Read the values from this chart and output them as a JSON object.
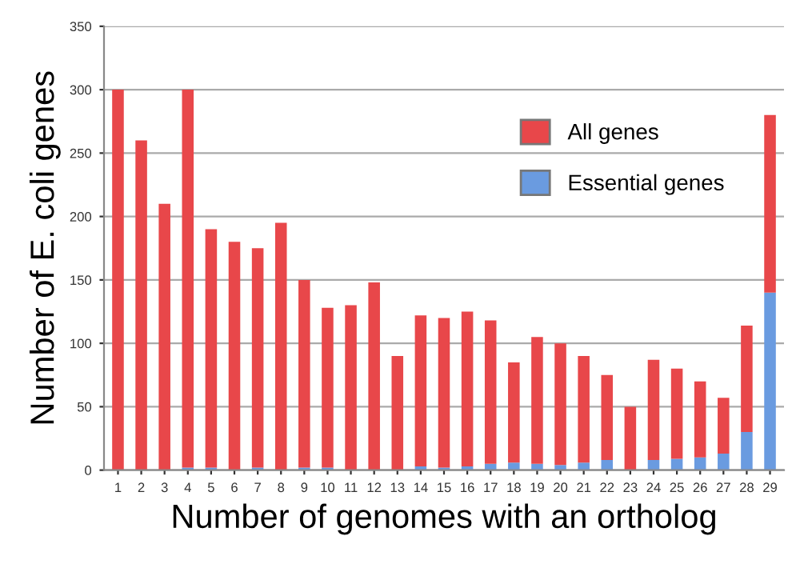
{
  "chart_data": {
    "type": "bar",
    "stacked": true,
    "xlabel": "Number of genomes with an ortholog",
    "ylabel": "Number of E. coli genes",
    "categories": [
      "1",
      "2",
      "3",
      "4",
      "5",
      "6",
      "7",
      "8",
      "9",
      "10",
      "11",
      "12",
      "13",
      "14",
      "15",
      "16",
      "17",
      "18",
      "19",
      "20",
      "21",
      "22",
      "23",
      "24",
      "25",
      "26",
      "27",
      "28",
      "29"
    ],
    "series": [
      {
        "name": "Essential genes",
        "color": "#6a9be0",
        "values": [
          0,
          0,
          0,
          2,
          2,
          0,
          2,
          0,
          2,
          2,
          0,
          0,
          0,
          3,
          2,
          3,
          5,
          6,
          5,
          4,
          6,
          8,
          0,
          8,
          9,
          10,
          13,
          30,
          140
        ]
      },
      {
        "name": "All genes",
        "color": "#e8474a",
        "values": [
          300,
          260,
          210,
          298,
          188,
          180,
          173,
          195,
          148,
          126,
          130,
          148,
          90,
          119,
          118,
          122,
          113,
          79,
          100,
          96,
          84,
          67,
          50,
          79,
          71,
          60,
          44,
          84,
          140
        ]
      }
    ],
    "ylim": [
      0,
      350
    ],
    "yticks": [
      0,
      50,
      100,
      150,
      200,
      250,
      300,
      350
    ],
    "grid": "y",
    "legend": "top right"
  }
}
